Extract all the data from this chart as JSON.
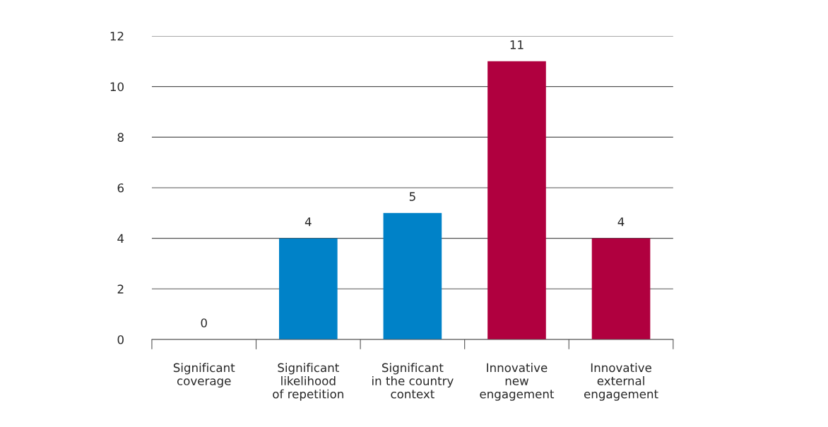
{
  "chart_data": {
    "type": "bar",
    "categories": [
      "Significant\ncoverage",
      "Significant\nlikelihood\nof repetition",
      "Significant\nin the country\ncontext",
      "Innovative\nnew\nengagement",
      "Innovative\nexternal\nengagement"
    ],
    "values": [
      0,
      4,
      5,
      11,
      4
    ],
    "colors": [
      "#0082c8",
      "#0082c8",
      "#0082c8",
      "#b0003f",
      "#b0003f"
    ],
    "ylim": [
      0,
      12
    ],
    "yticks": [
      0,
      2,
      4,
      6,
      8,
      10,
      12
    ],
    "grid": "y",
    "data_labels": true
  }
}
